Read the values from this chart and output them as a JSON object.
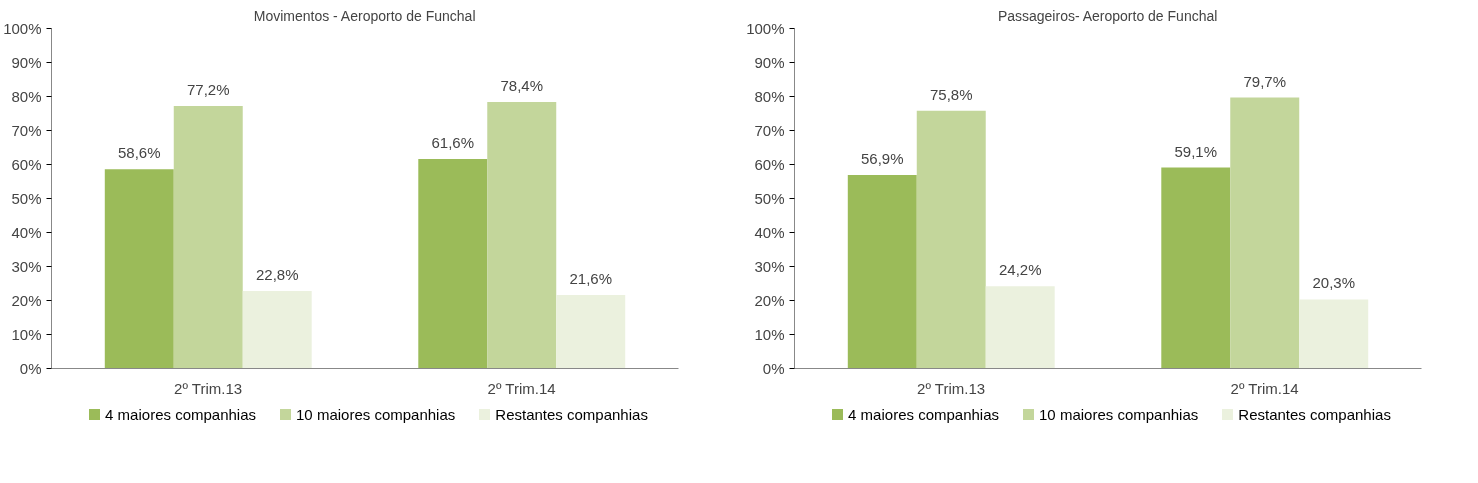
{
  "chart_data": [
    {
      "type": "bar",
      "title": "Movimentos - Aeroporto de Funchal",
      "categories": [
        "2º Trim.13",
        "2º Trim.14"
      ],
      "series": [
        {
          "name": "4 maiores companhias",
          "color": "#9bbb59",
          "values": [
            58.6,
            61.6
          ],
          "value_labels": [
            "58,6%",
            "61,6%"
          ]
        },
        {
          "name": "10 maiores companhias",
          "color": "#c3d69b",
          "values": [
            77.2,
            78.4
          ],
          "value_labels": [
            "77,2%",
            "78,4%"
          ]
        },
        {
          "name": "Restantes companhias",
          "color": "#ebf1de",
          "values": [
            22.8,
            21.6
          ],
          "value_labels": [
            "22,8%",
            "21,6%"
          ]
        }
      ],
      "ylim": [
        0,
        100
      ],
      "yticks": [
        {
          "value": 0,
          "label": "0%"
        },
        {
          "value": 10,
          "label": "10%"
        },
        {
          "value": 20,
          "label": "20%"
        },
        {
          "value": 30,
          "label": "30%"
        },
        {
          "value": 40,
          "label": "40%"
        },
        {
          "value": 50,
          "label": "50%"
        },
        {
          "value": 60,
          "label": "60%"
        },
        {
          "value": 70,
          "label": "70%"
        },
        {
          "value": 80,
          "label": "80%"
        },
        {
          "value": 90,
          "label": "90%"
        },
        {
          "value": 100,
          "label": "100%"
        }
      ],
      "grid": false,
      "legend": "bottom"
    },
    {
      "type": "bar",
      "title": "Passageiros- Aeroporto de Funchal",
      "categories": [
        "2º Trim.13",
        "2º Trim.14"
      ],
      "series": [
        {
          "name": "4 maiores companhias",
          "color": "#9bbb59",
          "values": [
            56.9,
            59.1
          ],
          "value_labels": [
            "56,9%",
            "59,1%"
          ]
        },
        {
          "name": "10 maiores companhias",
          "color": "#c3d69b",
          "values": [
            75.8,
            79.7
          ],
          "value_labels": [
            "75,8%",
            "79,7%"
          ]
        },
        {
          "name": "Restantes companhias",
          "color": "#ebf1de",
          "values": [
            24.2,
            20.3
          ],
          "value_labels": [
            "24,2%",
            "20,3%"
          ]
        }
      ],
      "ylim": [
        0,
        100
      ],
      "yticks": [
        {
          "value": 0,
          "label": "0%"
        },
        {
          "value": 10,
          "label": "10%"
        },
        {
          "value": 20,
          "label": "20%"
        },
        {
          "value": 30,
          "label": "30%"
        },
        {
          "value": 40,
          "label": "40%"
        },
        {
          "value": 50,
          "label": "50%"
        },
        {
          "value": 60,
          "label": "60%"
        },
        {
          "value": 70,
          "label": "70%"
        },
        {
          "value": 80,
          "label": "80%"
        },
        {
          "value": 90,
          "label": "90%"
        },
        {
          "value": 100,
          "label": "100%"
        }
      ],
      "grid": false,
      "legend": "bottom"
    }
  ]
}
